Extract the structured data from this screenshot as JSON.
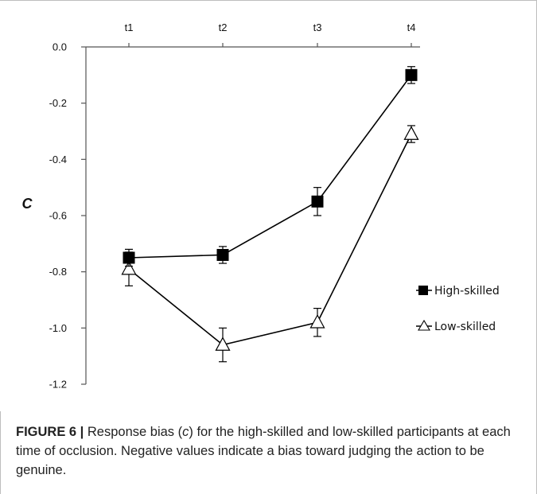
{
  "chart_data": {
    "type": "line",
    "categories": [
      "t1",
      "t2",
      "t3",
      "t4"
    ],
    "ylabel": "C",
    "ylim": [
      -1.2,
      0.0
    ],
    "yticks": [
      0.0,
      -0.2,
      -0.4,
      -0.6,
      -0.8,
      -1.0,
      -1.2
    ],
    "ytick_labels": [
      "0.0",
      "-0.2",
      "-0.4",
      "-0.6",
      "-0.8",
      "-1.0",
      "-1.2"
    ],
    "x_axis_position": "top",
    "grid": false,
    "legend_position": "right",
    "series": [
      {
        "name": "High-skilled",
        "marker": "filled-square",
        "color": "#000000",
        "values": [
          -0.75,
          -0.74,
          -0.55,
          -0.1
        ],
        "errors": [
          0.03,
          0.03,
          0.05,
          0.03
        ]
      },
      {
        "name": "Low-skilled",
        "marker": "open-triangle",
        "color": "#000000",
        "values": [
          -0.79,
          -1.06,
          -0.98,
          -0.31
        ],
        "errors": [
          0.06,
          0.06,
          0.05,
          0.03
        ]
      }
    ]
  },
  "caption": {
    "label": "FIGURE 6 |",
    "text_before_italic": " Response bias (",
    "italic": "c",
    "text_after_italic": ") for the high-skilled and low-skilled participants at each time of occlusion. Negative values indicate a bias toward judging the action to be genuine."
  }
}
